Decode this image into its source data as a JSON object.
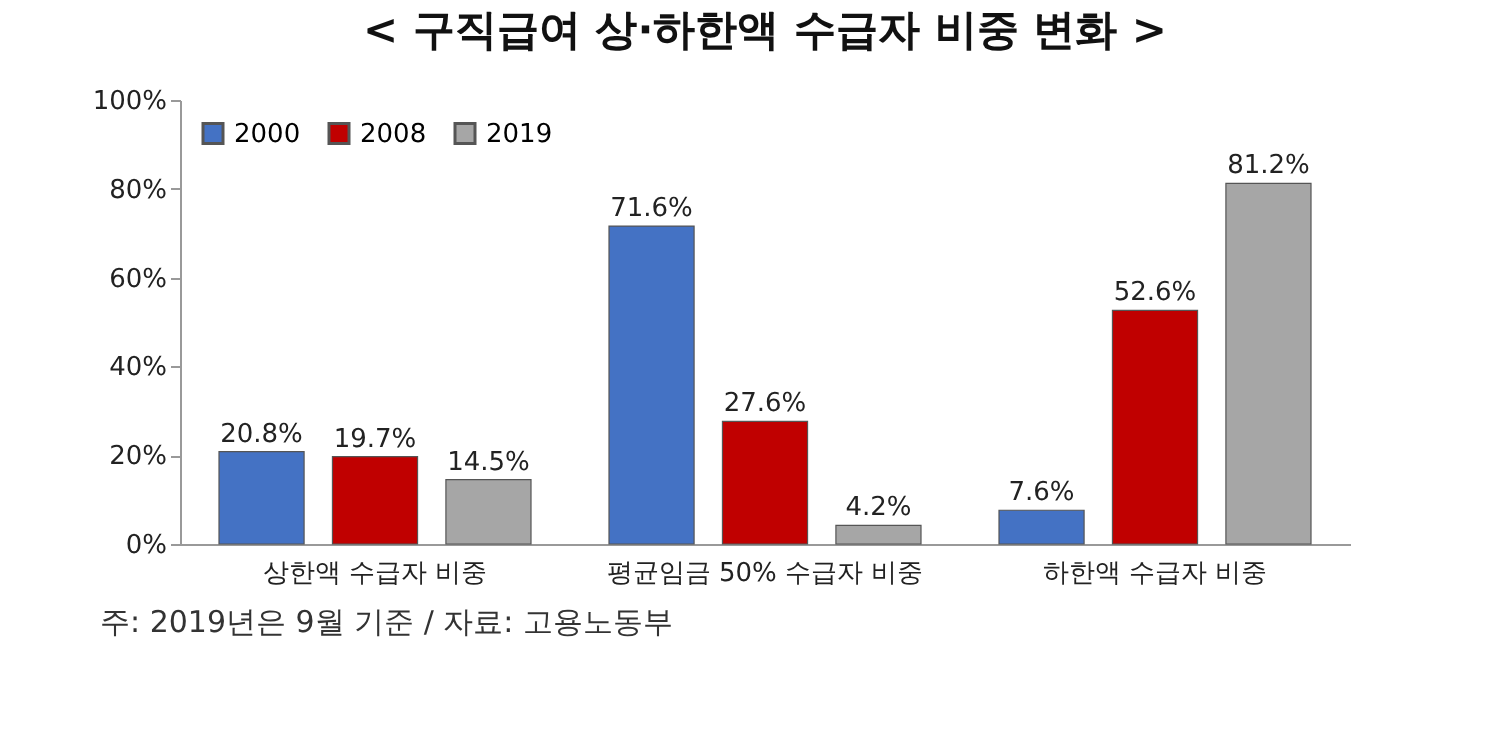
{
  "chart_data": {
    "type": "bar",
    "title": "< 구직급여 상·하한액 수급자 비중 변화 >",
    "categories": [
      "상한액 수급자 비중",
      "평균임금 50% 수급자 비중",
      "하한액 수급자 비중"
    ],
    "series": [
      {
        "name": "2000",
        "color": "#4472c4",
        "values": [
          20.8,
          71.6,
          7.6
        ],
        "value_labels": [
          "20.8%",
          "71.6%",
          "7.6%"
        ]
      },
      {
        "name": "2008",
        "color": "#c00000",
        "values": [
          19.7,
          27.6,
          52.6
        ],
        "value_labels": [
          "19.7%",
          "27.6%",
          "52.6%"
        ]
      },
      {
        "name": "2019",
        "color": "#a6a6a6",
        "values": [
          14.5,
          4.2,
          81.2
        ],
        "value_labels": [
          "14.5%",
          "4.2%",
          "81.2%"
        ]
      }
    ],
    "ylim": [
      0,
      100
    ],
    "yticks": [
      {
        "value": 0,
        "label": "0%"
      },
      {
        "value": 20,
        "label": "20%"
      },
      {
        "value": 40,
        "label": "40%"
      },
      {
        "value": 60,
        "label": "60%"
      },
      {
        "value": 80,
        "label": "80%"
      },
      {
        "value": 100,
        "label": "100%"
      }
    ],
    "legend": "top left",
    "grid": false,
    "annotations": [
      "주: 2019년은 9월 기준 / 자료: 고용노동부"
    ]
  }
}
